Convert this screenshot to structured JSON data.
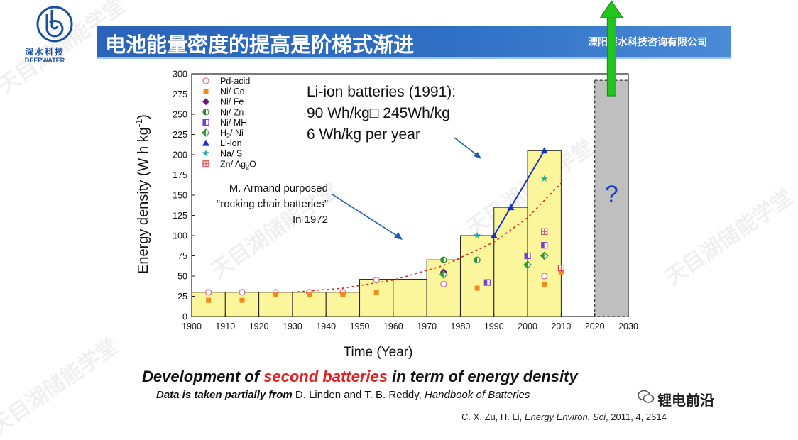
{
  "logo": {
    "cn": "深水科技",
    "en": "DEEPWATER"
  },
  "header": {
    "title": "电池能量密度的提高是阶梯式渐进",
    "company": "溧阳深水科技咨询有限公司"
  },
  "watermark": "天目湖储能学堂",
  "colors": {
    "banner": "#2f6fc4",
    "bar_fill": "#fbf69c",
    "arrow": "#22c41e",
    "future_box": "#bfbfbf",
    "liion": "#1b2fbf",
    "trend": "#e02020"
  },
  "chart_data": {
    "type": "bar",
    "xlabel": "Time (Year)",
    "ylabel": "Energy density (W h kg",
    "ylabel_sup": "-1",
    "ylabel_close": ")",
    "xlim": [
      1900,
      2030
    ],
    "ylim": [
      0,
      300
    ],
    "xticks": [
      "1900",
      "1910",
      "1920",
      "1930",
      "1940",
      "1950",
      "1960",
      "1970",
      "1980",
      "1990",
      "2000",
      "2010",
      "2020",
      "2030"
    ],
    "yticks": [
      "0",
      "25",
      "50",
      "75",
      "100",
      "125",
      "150",
      "175",
      "200",
      "225",
      "250",
      "275",
      "300"
    ],
    "steps": [
      {
        "from": 1900,
        "to": 1910,
        "value": 30
      },
      {
        "from": 1910,
        "to": 1920,
        "value": 30
      },
      {
        "from": 1920,
        "to": 1930,
        "value": 30
      },
      {
        "from": 1930,
        "to": 1940,
        "value": 30
      },
      {
        "from": 1940,
        "to": 1950,
        "value": 30
      },
      {
        "from": 1950,
        "to": 1960,
        "value": 46
      },
      {
        "from": 1960,
        "to": 1970,
        "value": 46
      },
      {
        "from": 1970,
        "to": 1980,
        "value": 70
      },
      {
        "from": 1980,
        "to": 1990,
        "value": 100
      },
      {
        "from": 1990,
        "to": 2000,
        "value": 135
      },
      {
        "from": 2000,
        "to": 2010,
        "value": 205
      }
    ],
    "future_box": {
      "from": 2020,
      "to": 2030,
      "value": 292,
      "label": "?"
    },
    "trend_line": {
      "x": [
        1930,
        1945,
        1960,
        1975,
        1990,
        2000,
        2010
      ],
      "y": [
        30,
        35,
        45,
        63,
        92,
        122,
        165
      ]
    },
    "series": [
      {
        "name": "Pd-acid",
        "marker": "circle-open",
        "color": "#e86b9a",
        "points": [
          [
            1905,
            30
          ],
          [
            1915,
            30
          ],
          [
            1925,
            30
          ],
          [
            1935,
            30
          ],
          [
            1945,
            30
          ],
          [
            1955,
            45
          ],
          [
            1975,
            40
          ],
          [
            2005,
            50
          ]
        ]
      },
      {
        "name": "Ni/ Cd",
        "marker": "square",
        "color": "#f08a1c",
        "points": [
          [
            1905,
            20
          ],
          [
            1915,
            20
          ],
          [
            1925,
            27
          ],
          [
            1935,
            27
          ],
          [
            1945,
            27
          ],
          [
            1955,
            30
          ],
          [
            1985,
            35
          ],
          [
            2005,
            40
          ],
          [
            2010,
            55
          ]
        ]
      },
      {
        "name": "Ni/ Fe",
        "marker": "diamond",
        "color": "#6a1b7a",
        "points": [
          [
            1975,
            55
          ]
        ]
      },
      {
        "name": "Ni/ Zn",
        "marker": "circle-half",
        "color": "#2e8b2e",
        "points": [
          [
            1975,
            70
          ],
          [
            1985,
            70
          ]
        ]
      },
      {
        "name": "Ni/ MH",
        "marker": "square-half",
        "color": "#7b3fd0",
        "points": [
          [
            1988,
            42
          ],
          [
            2000,
            75
          ],
          [
            2005,
            88
          ]
        ]
      },
      {
        "name": "H2/ Ni",
        "marker": "diamond-half",
        "color": "#2e9b2e",
        "points": [
          [
            1975,
            52
          ],
          [
            2000,
            64
          ],
          [
            2005,
            75
          ]
        ]
      },
      {
        "name": "Li-ion",
        "marker": "triangle",
        "color": "#1b2fbf",
        "points": [
          [
            1990,
            100
          ],
          [
            1995,
            135
          ],
          [
            2005,
            205
          ]
        ]
      },
      {
        "name": "Na/ S",
        "marker": "star",
        "color": "#2aa89a",
        "points": [
          [
            1985,
            100
          ],
          [
            2005,
            170
          ]
        ]
      },
      {
        "name": "Zn/ Ag2O",
        "marker": "square-grid",
        "color": "#e04040",
        "points": [
          [
            2005,
            105
          ],
          [
            2010,
            60
          ]
        ]
      }
    ],
    "legend": [
      {
        "label": "Pd-acid"
      },
      {
        "label": "Ni/ Cd"
      },
      {
        "label": "Ni/ Fe"
      },
      {
        "label": "Ni/ Zn"
      },
      {
        "label": "Ni/ MH"
      },
      {
        "label": "H",
        "sub": "2",
        "rest": "/ Ni"
      },
      {
        "label": "Li-ion"
      },
      {
        "label": "Na/ S"
      },
      {
        "label": "Zn/ Ag",
        "sub": "2",
        "rest": "O"
      }
    ],
    "annotations": {
      "liion": [
        "Li-ion batteries (1991):",
        "90 Wh/kg□  245Wh/kg",
        "6 Wh/kg per year"
      ],
      "armand": [
        "M. Armand purposed",
        "“rocking chair batteries”",
        "In 1972"
      ]
    }
  },
  "caption": {
    "part1": "Development of ",
    "highlight": "second batteries",
    "part2": " in term of energy density",
    "sub_prefix": "Data is taken partially from",
    "sub_mid": " D. Linden and T. B. Reddy, ",
    "sub_book": "Handbook of Batteries"
  },
  "wechat_name": "锂电前沿",
  "citation": {
    "authors": "C. X. Zu, H. Li, ",
    "journal": "Energy Environ. Sci",
    "rest": ", 2011, 4, 2614"
  }
}
